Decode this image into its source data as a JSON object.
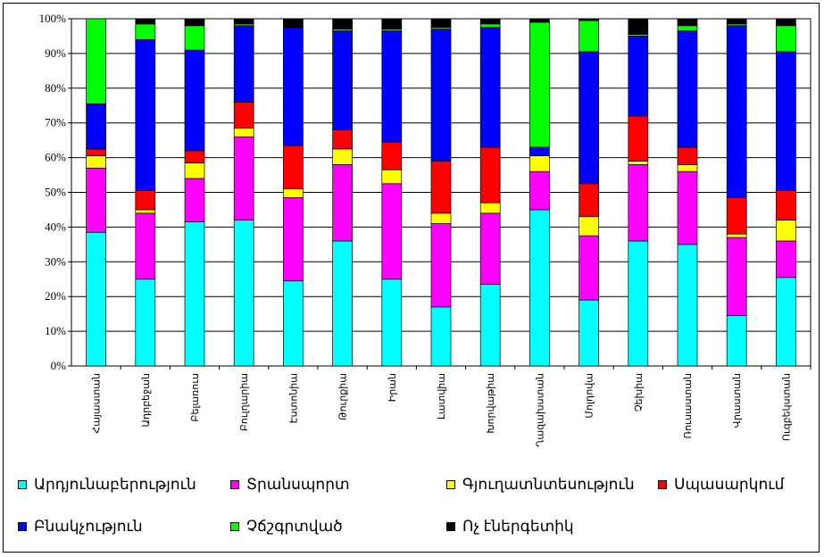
{
  "chart_data": {
    "type": "bar",
    "stacked": true,
    "percent": true,
    "ylim": [
      0,
      100
    ],
    "y_ticks": [
      "0%",
      "10%",
      "20%",
      "30%",
      "40%",
      "50%",
      "60%",
      "70%",
      "80%",
      "90%",
      "100%"
    ],
    "grid": "horizontal",
    "legend_position": "bottom",
    "categories": [
      "Հայաստան",
      "Ադրբեջան",
      "Բելառուս",
      "Բուլղարիա",
      "Էստոնիա",
      "Թուրքիա",
      "Իրան",
      "Լատվիա",
      "Խորվաթիա",
      "Ղազախստան",
      "Մոլդովա",
      "Չեխիա",
      "Ռուսաստան",
      "Վրաստան",
      "Ուզբեկստան"
    ],
    "series": [
      {
        "name": "Արդյունաբերություն",
        "color": "#00FFFF",
        "values": [
          38.5,
          25,
          41.5,
          42,
          24.5,
          36,
          25,
          17,
          23.5,
          45,
          19,
          36,
          35,
          14.5,
          25.5
        ]
      },
      {
        "name": "Տրանսպորտ",
        "color": "#FF00FF",
        "values": [
          18.5,
          19,
          12.5,
          24,
          24,
          22,
          27.5,
          24,
          20.5,
          11,
          18.5,
          22,
          21,
          22.5,
          10.5
        ]
      },
      {
        "name": "Գյուղատնտեսություն",
        "color": "#FFFF00",
        "values": [
          3.5,
          1,
          4.5,
          2.5,
          2.5,
          4.5,
          4,
          3,
          3,
          4.5,
          5.5,
          1,
          2,
          1,
          6
        ]
      },
      {
        "name": "Սպասարկում",
        "color": "#FF0000",
        "values": [
          2,
          5.5,
          3.5,
          7.5,
          12.5,
          5.5,
          8,
          15,
          16,
          0,
          9.5,
          13,
          5,
          10.5,
          8.5
        ]
      },
      {
        "name": "Բնակչություն",
        "color": "#0000FF",
        "values": [
          13,
          43.5,
          29,
          22,
          34,
          28.5,
          32,
          38,
          34.5,
          2.5,
          38,
          23,
          33.5,
          49.5,
          40
        ]
      },
      {
        "name": "Չճշգրտված",
        "color": "#00FF00",
        "values": [
          24.5,
          4.5,
          7,
          0.5,
          0,
          0.5,
          0.5,
          0.5,
          1,
          36,
          9,
          0.5,
          1.5,
          0.5,
          7.5
        ]
      },
      {
        "name": "Ոչ էներգետիկ",
        "color": "#000000",
        "values": [
          0,
          1.5,
          2,
          1.5,
          2.5,
          3,
          3,
          2.5,
          1.5,
          1,
          0.5,
          4.5,
          2,
          1.5,
          2
        ]
      }
    ]
  }
}
